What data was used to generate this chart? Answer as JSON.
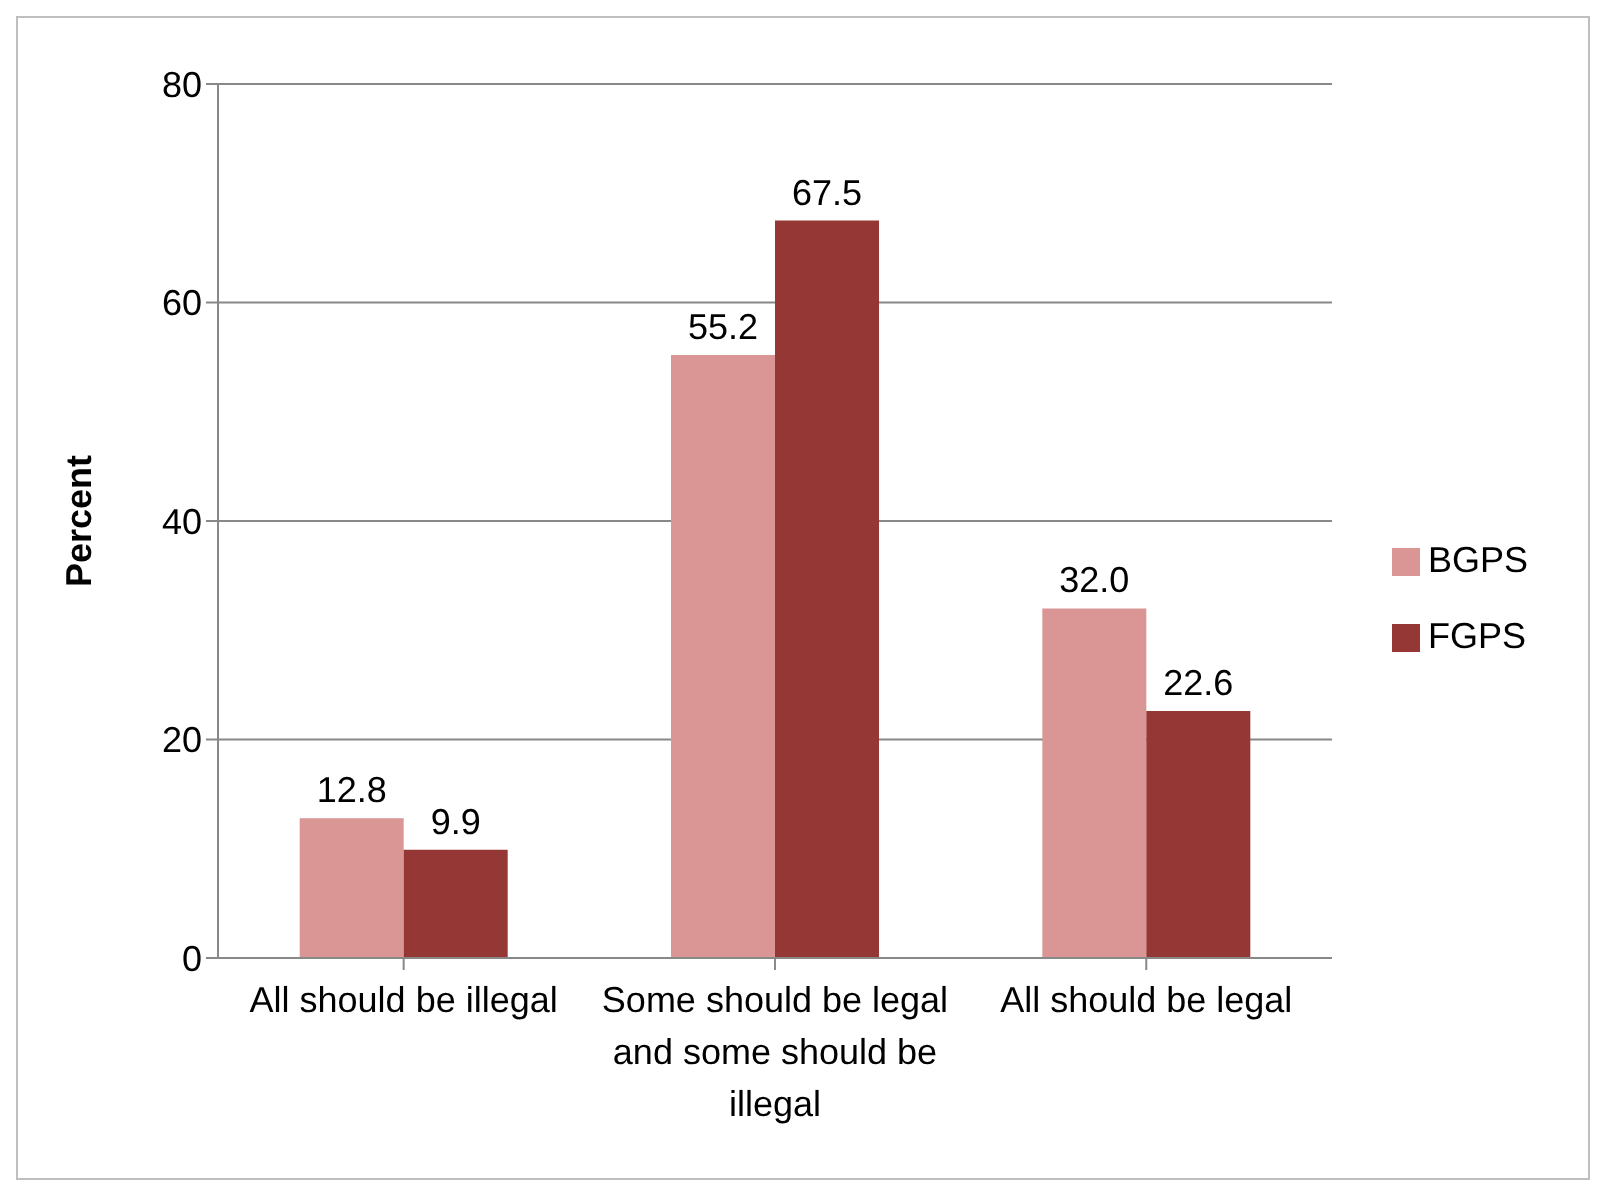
{
  "chart_data": {
    "type": "bar",
    "ylabel": "Percent",
    "categories": [
      "All should be illegal",
      "Some should be legal and some should be illegal",
      "All should be legal"
    ],
    "series": [
      {
        "name": "BGPS",
        "color": "#d99694",
        "values": [
          12.8,
          55.2,
          32.0
        ],
        "value_labels": [
          "12.8",
          "55.2",
          "32.0"
        ]
      },
      {
        "name": "FGPS",
        "color": "#953735",
        "values": [
          9.9,
          67.5,
          22.6
        ],
        "value_labels": [
          "9.9",
          "67.5",
          "22.6"
        ]
      }
    ],
    "ylim": [
      0,
      80
    ],
    "yticks": [
      0,
      20,
      40,
      60,
      80
    ],
    "grid": "y",
    "legend": "right"
  }
}
